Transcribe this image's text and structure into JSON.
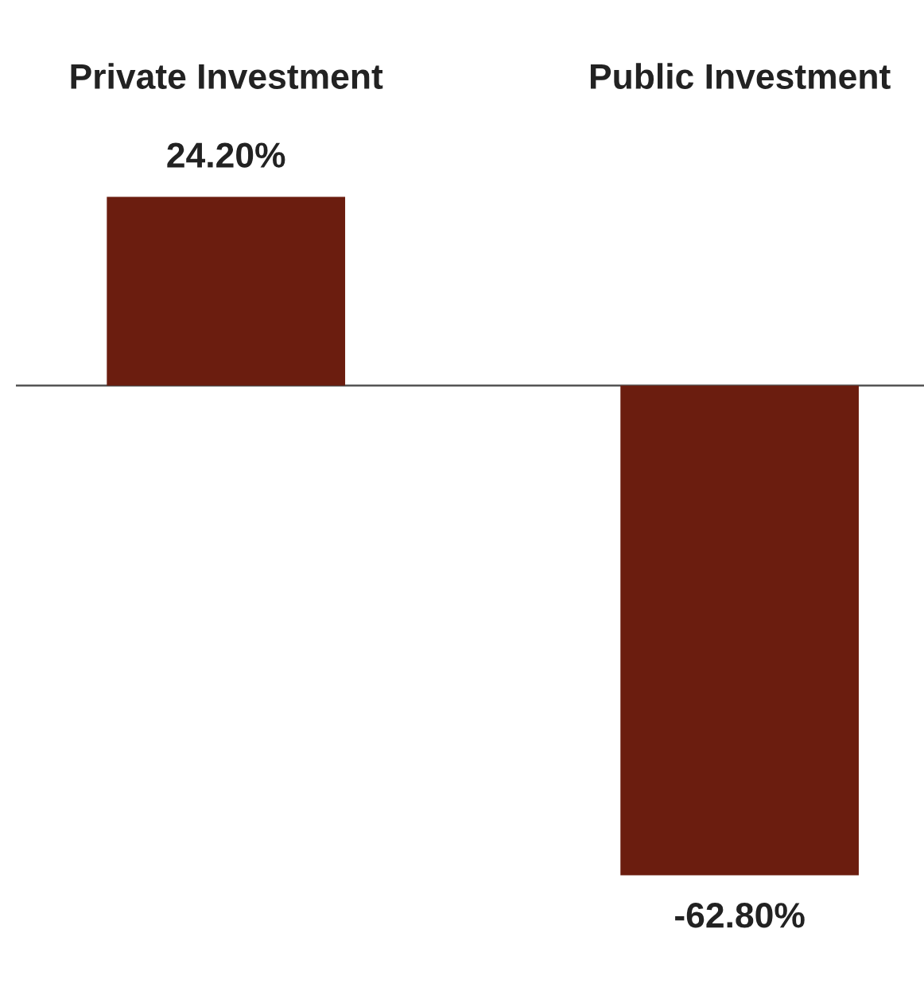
{
  "chart_data": {
    "type": "bar",
    "categories": [
      "Private Investment",
      "Public Investment"
    ],
    "values": [
      24.2,
      -62.8
    ],
    "value_labels": [
      "24.20%",
      "-62.80%"
    ],
    "color": "#6b1d0f",
    "legend": false
  }
}
